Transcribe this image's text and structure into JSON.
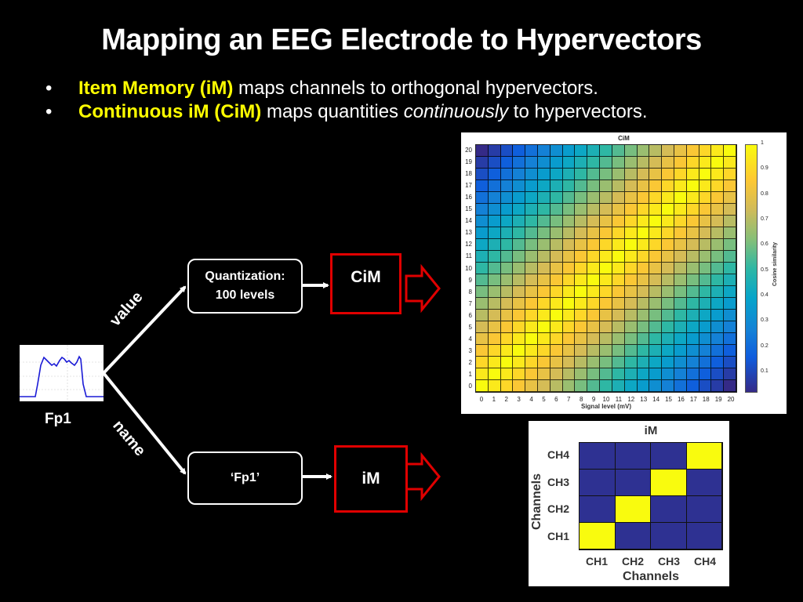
{
  "title": "Mapping an EEG Electrode to Hypervectors",
  "bullets": [
    {
      "marker": "•",
      "highlight": "Item Memory (iM)",
      "text": " maps channels to orthogonal hypervectors."
    },
    {
      "marker": "•",
      "highlight": "Continuous iM (CiM)",
      "text_before": " maps quantities ",
      "italic": "continuously",
      "text_after": " to hypervectors."
    }
  ],
  "diagram": {
    "electrode_label": "Fp1",
    "branch_value_label": "value",
    "branch_name_label": "name",
    "quantization_box": {
      "line1": "Quantization:",
      "line2": "100 levels"
    },
    "name_box": "‘Fp1’",
    "cim_box": "CiM",
    "im_box": "iM",
    "colors": {
      "box_border": "#ffffff",
      "memory_border": "#e00000",
      "highlight": "#ffff00"
    }
  },
  "chart_data": [
    {
      "type": "heatmap",
      "title": "CiM",
      "xlabel": "Signal level (mV)",
      "ylabel": "",
      "x": [
        0,
        1,
        2,
        3,
        4,
        5,
        6,
        7,
        8,
        9,
        10,
        11,
        12,
        13,
        14,
        15,
        16,
        17,
        18,
        19,
        20
      ],
      "y": [
        0,
        1,
        2,
        3,
        4,
        5,
        6,
        7,
        8,
        9,
        10,
        11,
        12,
        13,
        14,
        15,
        16,
        17,
        18,
        19,
        20
      ],
      "value_rule": "cosine similarity ≈ 1 - |x - y| / 20 (diagonal = 1, corners ≈ 0)",
      "colorbar": {
        "label": "Cosine similarity",
        "ticks": [
          0.1,
          0.2,
          0.3,
          0.4,
          0.5,
          0.6,
          0.7,
          0.8,
          0.9,
          1
        ],
        "range": [
          0,
          1
        ]
      },
      "colormap": "parula"
    },
    {
      "type": "heatmap",
      "title": "iM",
      "xlabel": "Channels",
      "ylabel": "Channels",
      "x": [
        "CH1",
        "CH2",
        "CH3",
        "CH4"
      ],
      "y": [
        "CH1",
        "CH2",
        "CH3",
        "CH4"
      ],
      "values": [
        [
          1,
          0,
          0,
          0
        ],
        [
          0,
          1,
          0,
          0
        ],
        [
          0,
          0,
          1,
          0
        ],
        [
          0,
          0,
          0,
          1
        ]
      ],
      "colors": {
        "high": "#f9fb0e",
        "low": "#2e3192"
      }
    }
  ]
}
